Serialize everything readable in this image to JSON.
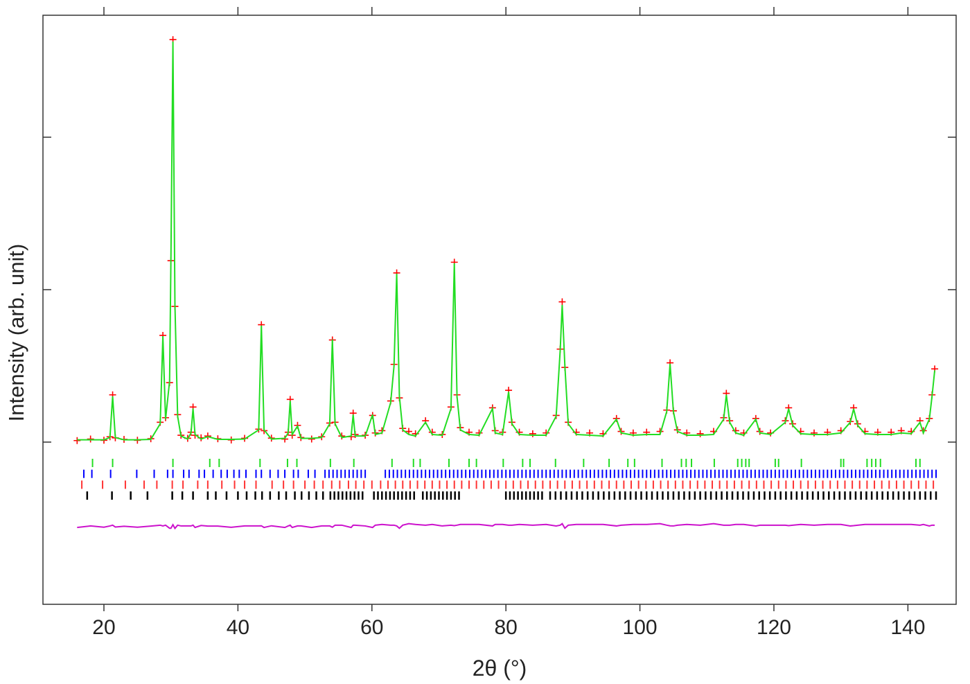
{
  "chart_data": {
    "type": "rietveld",
    "x_label": "2θ (°)",
    "y_label": "Intensity (arb. unit)",
    "xlim": [
      10.9,
      147.2
    ],
    "xticks": [
      20,
      40,
      60,
      80,
      100,
      120,
      140
    ],
    "ylim": [
      -1064,
      2800
    ],
    "yticks": [
      0,
      1000,
      2000
    ],
    "x": [
      16,
      18,
      20,
      20.9,
      21.3,
      21.7,
      23,
      25,
      27,
      28.4,
      28.8,
      29.2,
      29.8,
      30.0,
      30.3,
      30.6,
      31.0,
      31.5,
      32.5,
      33.0,
      33.3,
      33.6,
      34.5,
      35.5,
      37,
      39,
      41,
      43.1,
      43.5,
      43.9,
      45,
      47,
      47.5,
      47.8,
      48.1,
      48.9,
      49.4,
      51,
      52.5,
      53.7,
      54.1,
      54.5,
      55.5,
      56.9,
      57.2,
      57.5,
      59,
      60.1,
      60.5,
      61.5,
      62.8,
      63.3,
      63.7,
      64.1,
      64.6,
      65.5,
      66.5,
      68,
      69,
      70.5,
      71.8,
      72.3,
      72.7,
      73.2,
      74.5,
      76,
      78,
      78.4,
      79.5,
      80.4,
      80.9,
      82,
      84,
      86,
      87.5,
      88.1,
      88.4,
      88.8,
      89.3,
      90.5,
      92.5,
      94.5,
      96.5,
      97.2,
      99,
      101,
      103,
      104.0,
      104.5,
      105.0,
      105.6,
      107,
      109,
      111,
      112.5,
      112.9,
      113.4,
      114.3,
      115.5,
      117.3,
      117.9,
      119.5,
      121.7,
      122.2,
      122.8,
      124,
      126,
      128,
      130,
      131.4,
      131.9,
      132.5,
      133.6,
      135.5,
      137.5,
      139,
      140.5,
      141.8,
      142.3,
      143.2,
      143.6,
      144
    ],
    "series": [
      {
        "color": "#ff0000",
        "style": "cross",
        "values": [
          10,
          20,
          12,
          35,
          310,
          28,
          18,
          12,
          22,
          130,
          700,
          160,
          390,
          1190,
          2640,
          890,
          180,
          45,
          25,
          65,
          230,
          45,
          28,
          40,
          22,
          14,
          25,
          85,
          770,
          75,
          26,
          20,
          65,
          280,
          45,
          110,
          30,
          20,
          35,
          125,
          670,
          130,
          40,
          35,
          190,
          50,
          45,
          175,
          60,
          75,
          270,
          510,
          1110,
          290,
          90,
          70,
          55,
          140,
          65,
          50,
          230,
          1180,
          310,
          95,
          65,
          60,
          225,
          75,
          65,
          340,
          130,
          65,
          55,
          60,
          175,
          610,
          920,
          490,
          130,
          65,
          60,
          55,
          155,
          70,
          60,
          65,
          70,
          210,
          520,
          205,
          80,
          60,
          55,
          70,
          160,
          320,
          140,
          75,
          60,
          155,
          70,
          60,
          140,
          225,
          120,
          70,
          60,
          65,
          75,
          135,
          225,
          120,
          70,
          65,
          65,
          75,
          70,
          140,
          75,
          155,
          310,
          480
        ]
      },
      {
        "color": "#22dd22",
        "style": "line",
        "values": [
          15,
          15,
          15,
          30,
          300,
          30,
          15,
          15,
          18,
          120,
          695,
          150,
          400,
          1200,
          2627,
          900,
          170,
          40,
          20,
          60,
          220,
          50,
          20,
          36,
          18,
          18,
          20,
          80,
          764,
          80,
          20,
          25,
          60,
          270,
          50,
          105,
          25,
          25,
          30,
          120,
          673,
          120,
          30,
          40,
          180,
          40,
          40,
          180,
          50,
          60,
          260,
          500,
          1105,
          300,
          80,
          50,
          40,
          130,
          50,
          45,
          220,
          1173,
          300,
          80,
          50,
          45,
          220,
          60,
          50,
          330,
          120,
          50,
          45,
          45,
          170,
          600,
          900,
          500,
          120,
          50,
          45,
          40,
          150,
          60,
          45,
          50,
          50,
          200,
          514,
          200,
          70,
          45,
          45,
          50,
          150,
          310,
          130,
          60,
          45,
          150,
          60,
          50,
          130,
          218,
          110,
          55,
          50,
          50,
          60,
          130,
          218,
          110,
          55,
          50,
          50,
          60,
          55,
          130,
          60,
          150,
          300,
          470
        ]
      },
      {
        "color": "#cc11cc",
        "style": "line",
        "values": [
          -560,
          -550,
          -558,
          -550,
          -545,
          -557,
          -552,
          -558,
          -551,
          -545,
          -550,
          -545,
          -565,
          -565,
          -542,
          -566,
          -545,
          -550,
          -550,
          -550,
          -545,
          -560,
          -547,
          -551,
          -551,
          -559,
          -550,
          -550,
          -549,
          -560,
          -549,
          -560,
          -550,
          -545,
          -560,
          -550,
          -550,
          -560,
          -550,
          -550,
          -558,
          -545,
          -545,
          -560,
          -545,
          -545,
          -550,
          -560,
          -545,
          -540,
          -545,
          -545,
          -550,
          -565,
          -545,
          -535,
          -540,
          -545,
          -540,
          -550,
          -545,
          -548,
          -545,
          -540,
          -540,
          -540,
          -550,
          -540,
          -540,
          -545,
          -545,
          -540,
          -545,
          -540,
          -550,
          -545,
          -535,
          -565,
          -545,
          -540,
          -540,
          -540,
          -550,
          -545,
          -540,
          -540,
          -535,
          -545,
          -549,
          -550,
          -545,
          -540,
          -545,
          -535,
          -545,
          -545,
          -545,
          -540,
          -540,
          -550,
          -545,
          -545,
          -545,
          -548,
          -545,
          -540,
          -545,
          -540,
          -540,
          -550,
          -548,
          -545,
          -540,
          -540,
          -540,
          -540,
          -540,
          -545,
          -540,
          -550,
          -545,
          -545
        ]
      }
    ],
    "reflections": [
      {
        "color": "#22dd22",
        "positions": [
          18.3,
          21.3,
          30.3,
          35.8,
          37.2,
          43.3,
          47.4,
          48.8,
          53.8,
          57.3,
          63.0,
          66.2,
          67.2,
          71.5,
          74.5,
          75.6,
          79.6,
          82.5,
          83.6,
          87.4,
          91.6,
          95.4,
          98.2,
          99.2,
          103.3,
          106.2,
          106.9,
          107.7,
          111.1,
          114.6,
          115.2,
          115.8,
          116.3,
          120.2,
          120.7,
          124.1,
          130.0,
          130.4,
          133.9,
          134.6,
          135.2,
          135.9,
          141.2,
          141.8
        ]
      },
      {
        "color": "#0000ff",
        "positions": [
          17.0,
          18.2,
          21.0,
          24.9,
          27.5,
          29.5,
          30.3,
          31.9,
          32.7,
          34.2,
          35.0,
          36.3,
          37.5,
          38.4,
          39.4,
          40.2,
          41.2,
          42.7,
          43.5,
          44.8,
          46.0,
          47.0,
          48.3,
          49.0,
          50.5,
          51.5,
          53.0,
          53.6,
          54.2,
          54.8,
          55.4,
          56.0,
          56.6,
          57.2,
          57.8,
          58.4,
          59.0,
          62.0,
          62.6,
          63.2,
          63.8,
          64.4,
          65.0,
          65.6,
          66.2,
          66.8,
          67.4,
          68.0,
          68.6,
          69.2,
          69.8,
          70.4,
          71.0,
          71.6,
          72.2,
          72.8,
          73.4,
          74.0,
          74.6,
          75.2,
          75.8,
          76.4,
          77.0,
          77.6,
          78.2,
          78.8,
          79.4,
          80.0,
          80.6,
          81.2,
          81.8,
          82.4,
          83.0,
          83.6,
          84.2,
          84.8,
          85.4,
          86.0,
          86.6,
          87.2,
          87.8,
          88.4,
          89.0,
          89.6,
          90.2,
          90.8,
          91.4,
          92.0,
          92.6,
          93.2,
          93.8,
          94.4,
          95.0,
          95.6,
          96.2,
          96.8,
          97.4,
          98.0,
          98.6,
          99.2,
          99.8,
          100.4,
          101.0,
          101.6,
          102.2,
          102.8,
          103.4,
          104.0,
          104.6,
          105.2,
          105.8,
          106.4,
          107.0,
          107.6,
          108.2,
          108.8,
          109.4,
          110.0,
          110.6,
          111.2,
          111.8,
          112.4,
          113.0,
          113.6,
          114.2,
          114.8,
          115.4,
          116.0,
          116.6,
          117.2,
          117.8,
          118.4,
          119.0,
          119.6,
          120.2,
          120.8,
          121.4,
          122.0,
          122.6,
          123.2,
          123.8,
          124.4,
          125.0,
          125.6,
          126.2,
          126.8,
          127.4,
          128.0,
          128.6,
          129.2,
          129.8,
          130.4,
          131.0,
          131.6,
          132.2,
          132.8,
          133.4,
          134.0,
          134.6,
          135.2,
          135.8,
          136.4,
          137.0,
          137.6,
          138.2,
          138.8,
          139.4,
          140.0,
          140.6,
          141.2,
          141.8,
          142.4,
          143.0,
          143.6,
          144.2
        ]
      },
      {
        "color": "#ff3333",
        "positions": [
          16.7,
          19.8,
          23.2,
          26.0,
          27.9,
          30.2,
          31.8,
          34.0,
          35.5,
          37.6,
          39.5,
          41.0,
          42.7,
          45.1,
          46.8,
          48.3,
          50.0,
          51.4,
          52.7,
          54.0,
          55.2,
          56.5,
          57.6,
          58.8,
          60.0,
          61.3,
          62.4,
          63.5,
          64.6,
          65.7,
          66.8,
          67.9,
          69.0,
          70.1,
          71.2,
          72.3,
          73.4,
          74.5,
          75.6,
          76.7,
          77.8,
          78.9,
          80.0,
          81.1,
          82.2,
          83.3,
          84.4,
          85.5,
          86.6,
          87.7,
          88.8,
          89.9,
          91.0,
          92.1,
          93.2,
          94.3,
          95.4,
          96.5,
          97.6,
          98.7,
          99.8,
          100.9,
          102.0,
          103.1,
          104.2,
          105.3,
          106.4,
          107.5,
          108.6,
          109.7,
          110.8,
          111.9,
          113.0,
          114.1,
          115.2,
          116.3,
          117.4,
          118.5,
          119.6,
          120.7,
          121.8,
          122.9,
          124.0,
          125.1,
          126.2,
          127.3,
          128.4,
          129.5,
          130.6,
          131.7,
          132.8,
          133.9,
          135.0,
          136.1,
          137.2,
          138.3,
          139.4,
          140.5,
          141.6,
          142.7,
          143.8
        ]
      },
      {
        "color": "#000000",
        "positions": [
          17.5,
          21.2,
          24.0,
          26.5,
          30.2,
          31.7,
          33.3,
          35.5,
          36.7,
          38.3,
          40.0,
          41.3,
          42.6,
          43.6,
          44.8,
          46.1,
          47.2,
          48.5,
          49.5,
          50.6,
          51.7,
          52.7,
          53.8,
          54.4,
          55.0,
          55.6,
          56.2,
          56.8,
          57.4,
          58.0,
          58.6,
          60.3,
          60.9,
          61.5,
          62.1,
          62.7,
          63.3,
          63.9,
          64.5,
          65.1,
          65.7,
          66.3,
          67.6,
          68.2,
          68.8,
          69.4,
          70.0,
          70.6,
          71.2,
          71.8,
          72.4,
          73.0,
          80.0,
          80.6,
          81.2,
          81.8,
          82.4,
          83.0,
          83.6,
          84.2,
          84.8,
          85.4,
          86.6,
          87.4,
          88.2,
          89.0,
          89.8,
          90.6,
          91.4,
          92.2,
          93.0,
          93.8,
          94.6,
          95.4,
          96.2,
          97.0,
          97.8,
          98.6,
          99.4,
          100.2,
          101.0,
          101.8,
          102.6,
          103.4,
          104.2,
          105.0,
          105.8,
          106.6,
          107.4,
          108.2,
          109.0,
          109.8,
          110.6,
          111.4,
          112.2,
          113.0,
          113.8,
          114.6,
          115.4,
          116.2,
          117.0,
          117.8,
          118.6,
          119.4,
          120.2,
          121.0,
          121.8,
          122.6,
          123.4,
          124.2,
          125.0,
          125.8,
          126.6,
          127.4,
          128.2,
          129.0,
          129.8,
          130.6,
          131.4,
          132.2,
          133.0,
          133.8,
          134.6,
          135.4,
          136.2,
          137.0,
          137.8,
          138.6,
          139.4,
          140.2,
          141.0,
          141.8,
          142.6,
          143.4,
          144.2
        ]
      }
    ]
  }
}
